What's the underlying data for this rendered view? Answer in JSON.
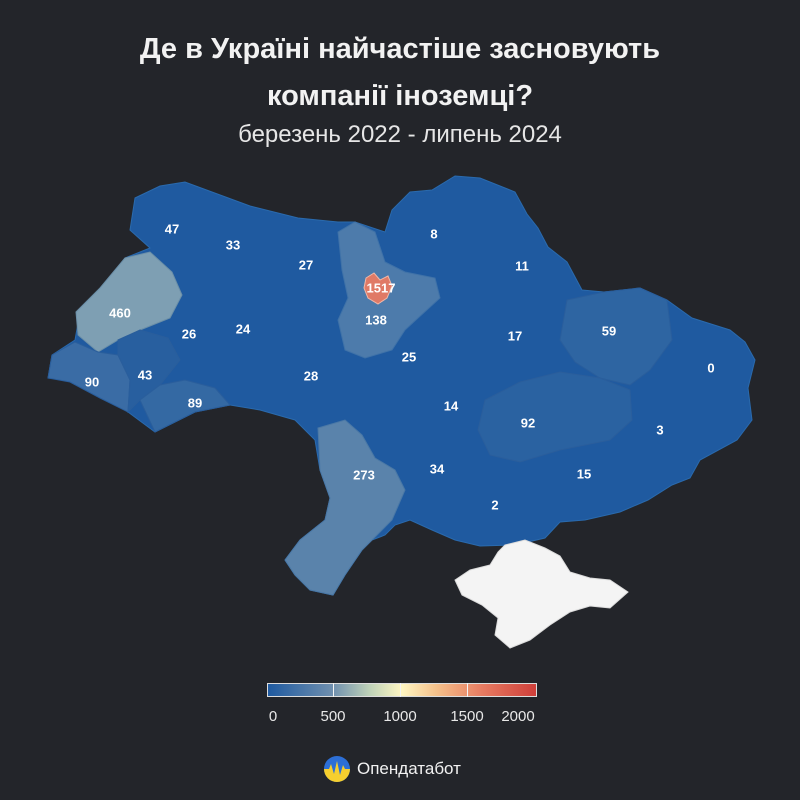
{
  "title": {
    "line1": "Де в Україні найчастіше засновують",
    "line2": "компанії іноземці?"
  },
  "subtitle": "березень 2022 - липень 2024",
  "colors": {
    "background": "#23252a",
    "low": "#1f5aa0",
    "mid": "#6f8fae",
    "high": "#cf3f3a",
    "crimea": "#f4f4f4"
  },
  "regions": [
    {
      "name": "Волинська",
      "value": "47"
    },
    {
      "name": "Рівненська",
      "value": "33"
    },
    {
      "name": "Житомирська",
      "value": "27"
    },
    {
      "name": "Чернігівська",
      "value": "8"
    },
    {
      "name": "Сумська",
      "value": "11"
    },
    {
      "name": "Київ",
      "value": "1517"
    },
    {
      "name": "Київська",
      "value": "138"
    },
    {
      "name": "Львівська",
      "value": "460"
    },
    {
      "name": "Тернопільська",
      "value": "26"
    },
    {
      "name": "Хмельницька",
      "value": "24"
    },
    {
      "name": "Полтавська",
      "value": "17"
    },
    {
      "name": "Харківська",
      "value": "59"
    },
    {
      "name": "Закарпатська",
      "value": "90"
    },
    {
      "name": "Івано-Франківська",
      "value": "43"
    },
    {
      "name": "Вінницька",
      "value": "28"
    },
    {
      "name": "Черкаська",
      "value": "25"
    },
    {
      "name": "Луганська",
      "value": "0"
    },
    {
      "name": "Чернівецька",
      "value": "89"
    },
    {
      "name": "Кіровоградська",
      "value": "14"
    },
    {
      "name": "Дніпропетровська",
      "value": "92"
    },
    {
      "name": "Донецька",
      "value": "3"
    },
    {
      "name": "Одеська",
      "value": "273"
    },
    {
      "name": "Миколаївська",
      "value": "34"
    },
    {
      "name": "Запорізька",
      "value": "15"
    },
    {
      "name": "Херсонська",
      "value": "2"
    }
  ],
  "legend": {
    "ticks": [
      "0",
      "500",
      "1000",
      "1500",
      "2000"
    ]
  },
  "brand": {
    "name": "Опендатабот",
    "icon": "opendatabot-logo-icon"
  }
}
